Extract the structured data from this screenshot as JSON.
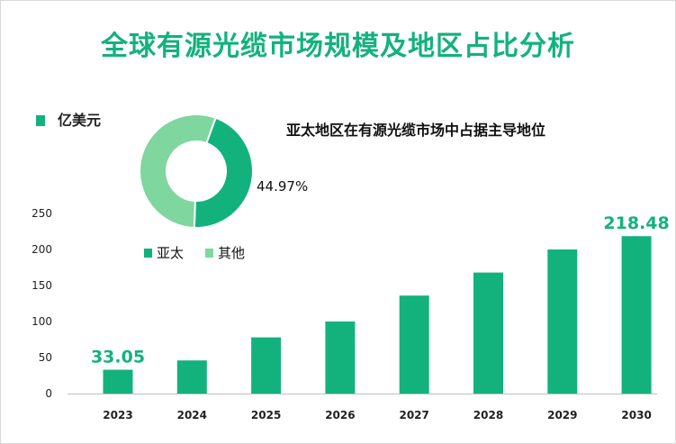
{
  "header": {
    "title": "全球有源光缆市场规模及地区占比分析"
  },
  "chart_data": [
    {
      "type": "bar",
      "unit_label": "亿美元",
      "categories": [
        "2023",
        "2024",
        "2025",
        "2026",
        "2027",
        "2028",
        "2029",
        "2030"
      ],
      "values": [
        33.05,
        46,
        78,
        100,
        136,
        168,
        200,
        218.48
      ],
      "data_labels": [
        {
          "index": 0,
          "text": "33.05"
        },
        {
          "index": 7,
          "text": "218.48"
        }
      ],
      "ylim": [
        0,
        250
      ],
      "yticks": [
        0,
        50,
        100,
        150,
        200,
        250
      ],
      "yticks_text": [
        "0",
        "50",
        "100",
        "150",
        "200",
        "250"
      ],
      "color": "#13b27c",
      "grid": false
    },
    {
      "type": "pie",
      "variant": "donut",
      "title": "亚太地区在有源光缆市场中占据主导地位",
      "slices": [
        {
          "name": "亚太",
          "value": 44.97,
          "color": "#13b27c"
        },
        {
          "name": "其他",
          "value": 55.03,
          "color": "#7fd69e"
        }
      ],
      "labels": [
        {
          "slice": 0,
          "text": "44.97%"
        }
      ],
      "legend_position": "bottom"
    }
  ]
}
